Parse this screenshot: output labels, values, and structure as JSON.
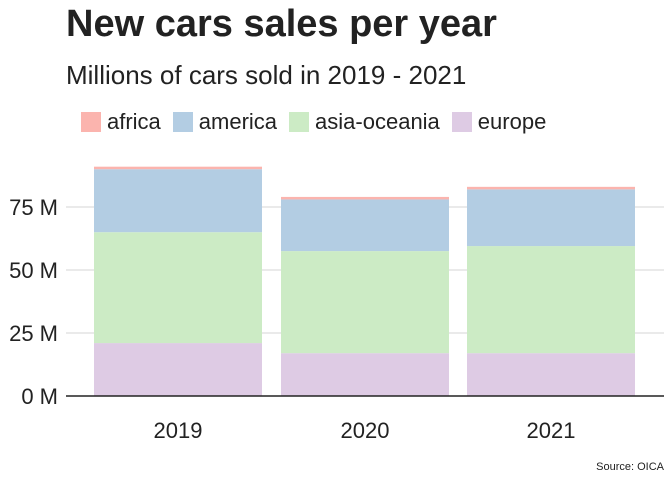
{
  "title": "New cars sales per year",
  "subtitle": "Millions of cars sold in 2019 - 2021",
  "source": "Source: OICA",
  "chart_data": {
    "type": "bar",
    "stacked": true,
    "categories": [
      "2019",
      "2020",
      "2021"
    ],
    "series": [
      {
        "name": "europe",
        "color": "#decbe4",
        "values": [
          21.0,
          17.0,
          17.0
        ]
      },
      {
        "name": "asia-oceania",
        "color": "#ccebc5",
        "values": [
          44.0,
          40.5,
          42.5
        ]
      },
      {
        "name": "america",
        "color": "#b3cde3",
        "values": [
          25.0,
          20.5,
          22.5
        ]
      },
      {
        "name": "africa",
        "color": "#fbb4ae",
        "values": [
          1.0,
          1.0,
          1.0
        ]
      }
    ],
    "legend": [
      "africa",
      "america",
      "asia-oceania",
      "europe"
    ],
    "legend_placement": "top-left",
    "ylim": [
      0,
      92
    ],
    "yticks": [
      0,
      25,
      50,
      75
    ],
    "ytick_labels": [
      "0 M",
      "25 M",
      "50 M",
      "75 M"
    ],
    "grid": "horizontal",
    "xlabel": "",
    "ylabel": ""
  }
}
